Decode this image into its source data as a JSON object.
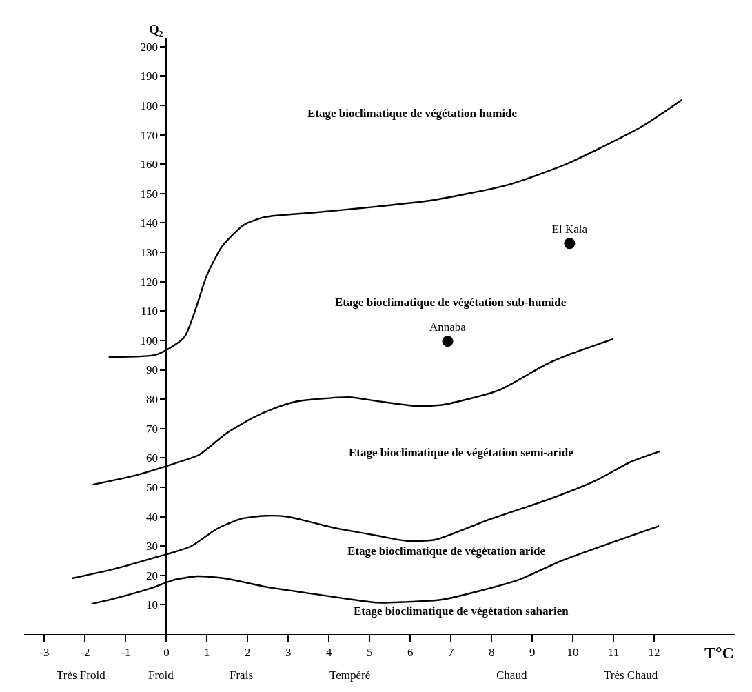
{
  "chart_data": {
    "type": "line",
    "xlabel": "T°C",
    "ylabel": "Q₂",
    "xlim": [
      -3.5,
      14
    ],
    "ylim": [
      0,
      203
    ],
    "xticks": [
      -3,
      -2,
      -1,
      0,
      1,
      2,
      3,
      4,
      5,
      6,
      7,
      8,
      9,
      10,
      11,
      12
    ],
    "yticks": [
      10,
      20,
      30,
      40,
      50,
      60,
      70,
      80,
      90,
      100,
      110,
      120,
      130,
      140,
      150,
      160,
      170,
      180,
      190,
      200
    ],
    "legend": false,
    "series": [
      {
        "color": "#000000",
        "marker": "none",
        "x": [
          -1.42,
          -0.24,
          0.44,
          1.0,
          1.37,
          1.9,
          2.43,
          3.62,
          5.2,
          6.57,
          8.41,
          9.83,
          11.67,
          12.68
        ],
        "values": [
          94.4,
          95.2,
          101.1,
          122.3,
          132,
          139.3,
          142,
          143.5,
          145.6,
          147.8,
          153,
          160,
          172.6,
          181.9
        ]
      },
      {
        "color": "#000000",
        "marker": "none",
        "x": [
          -1.81,
          -0.72,
          0.29,
          0.8,
          1.48,
          2.13,
          2.66,
          3.2,
          4.5,
          5.2,
          6.15,
          6.8,
          8.17,
          9.35,
          9.95,
          10.99
        ],
        "values": [
          50.9,
          54.2,
          58.5,
          61,
          68.4,
          73.7,
          76.9,
          79.2,
          80.7,
          79.3,
          77.7,
          78.1,
          83,
          91.9,
          95.4,
          100.5
        ]
      },
      {
        "color": "#000000",
        "marker": "none",
        "x": [
          -2.32,
          -1.31,
          -0.3,
          0.59,
          1.25,
          1.84,
          2.43,
          2.97,
          4.09,
          5.2,
          5.92,
          6.63,
          7.88,
          9.35,
          10.55,
          11.43,
          12.15
        ],
        "values": [
          19,
          22.1,
          26,
          29.8,
          35.9,
          39.3,
          40.3,
          40,
          36.3,
          33.5,
          31.7,
          32.2,
          38.7,
          45.6,
          52.2,
          58.7,
          62.3
        ]
      },
      {
        "color": "#000000",
        "marker": "none",
        "x": [
          -1.84,
          -1.31,
          -0.3,
          0.17,
          0.77,
          1.42,
          2.49,
          3.32,
          5.2,
          5.8,
          6.8,
          8.65,
          9.71,
          12.12
        ],
        "values": [
          10.3,
          12,
          16,
          18.4,
          19.7,
          19,
          16,
          14.3,
          10.7,
          10.9,
          11.8,
          18.4,
          24.9,
          36.8
        ]
      },
      {
        "type": "scatter",
        "name": "El Kala",
        "color": "#000000",
        "marker": "circle",
        "x": [
          9.92
        ],
        "values": [
          133
        ]
      },
      {
        "type": "scatter",
        "name": "Annaba",
        "color": "#000000",
        "marker": "circle",
        "x": [
          6.92
        ],
        "values": [
          99.7
        ]
      }
    ],
    "annotations": [
      "Etage bioclimatique de végétation humide",
      "Etage bioclimatique de végétation sub-humide",
      "Etage bioclimatique de végétation semi-aride",
      "Etage bioclimatique de végétation aride",
      "Etage bioclimatique de végétation saharien",
      "Très Froid",
      "Froid",
      "Frais",
      "Tempéré",
      "Chaud",
      "Très Chaud"
    ]
  }
}
